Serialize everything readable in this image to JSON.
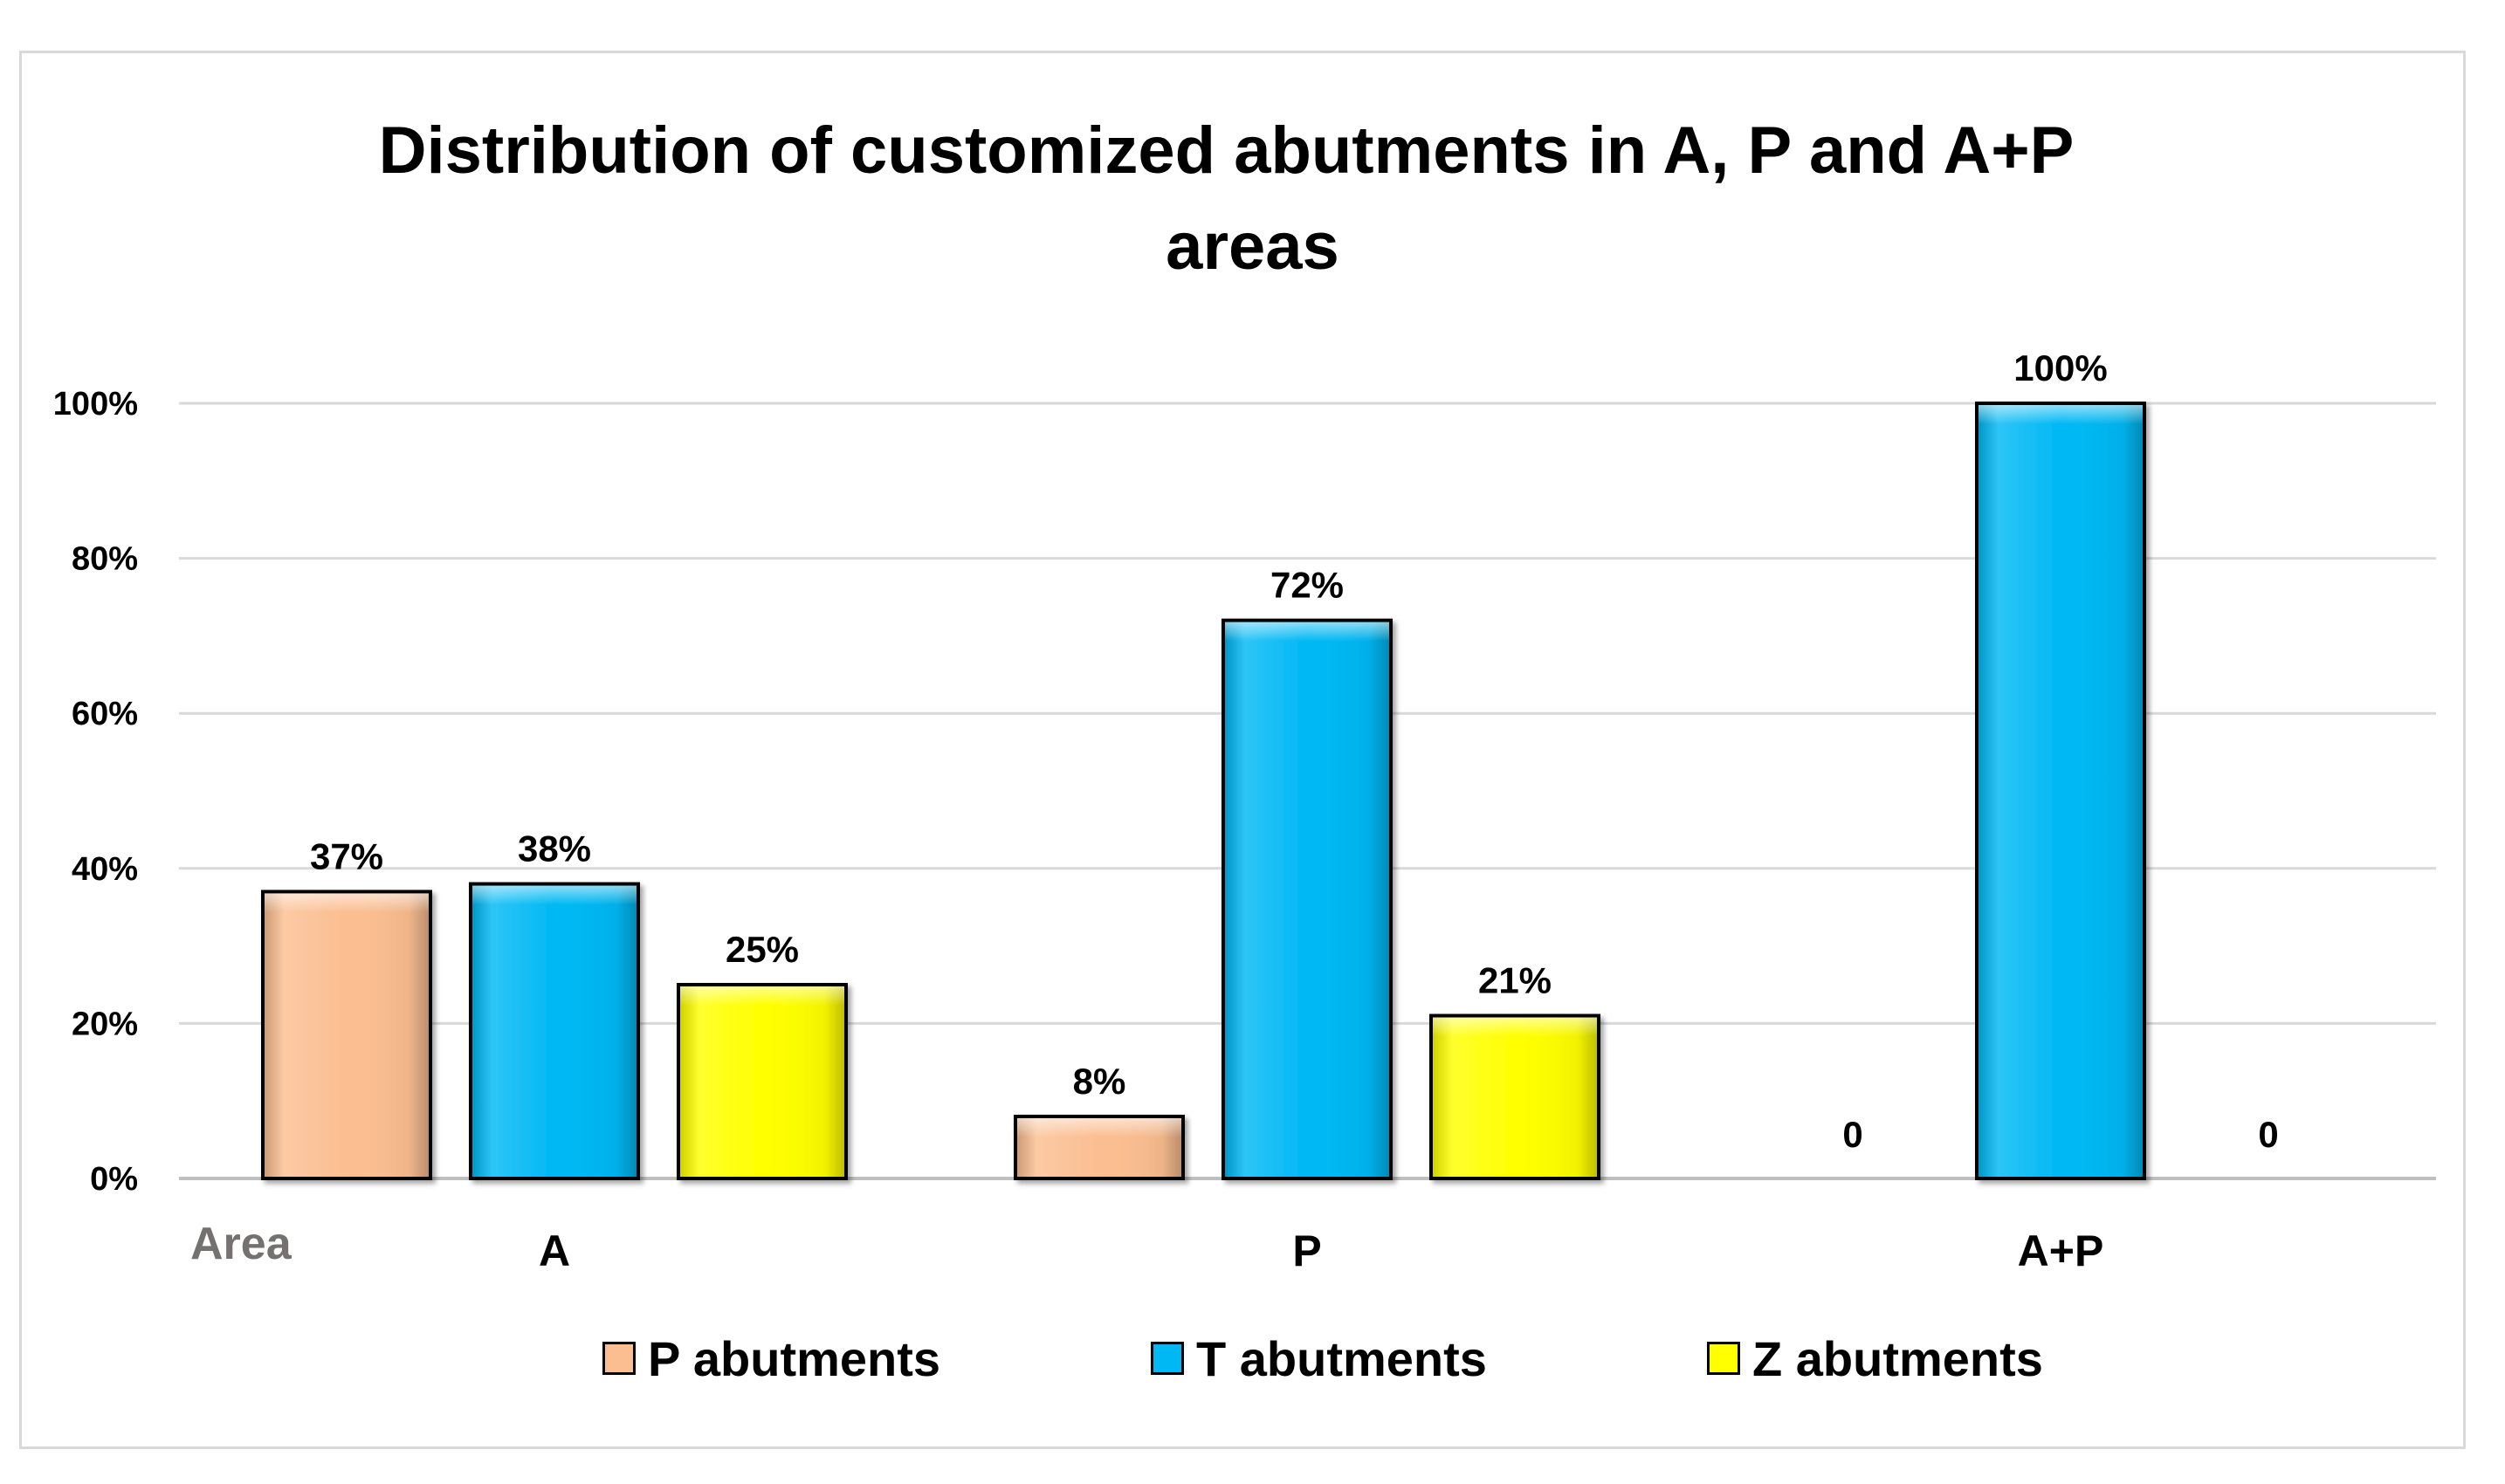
{
  "chart_data": {
    "type": "bar",
    "title": "Distribution of customized abutments in A, P and A+P areas",
    "title_lines": [
      "Distribution of customized abutments in A, P and A+P",
      "areas"
    ],
    "xlabel": "Area",
    "ylabel": "",
    "categories": [
      "A",
      "P",
      "A+P"
    ],
    "ylim": [
      0,
      100
    ],
    "yticks": [
      0,
      20,
      40,
      60,
      80,
      100
    ],
    "ytick_labels": [
      "0%",
      "20%",
      "40%",
      "60%",
      "80%",
      "100%"
    ],
    "grid": true,
    "legend_position": "bottom",
    "series": [
      {
        "name": "P abutments",
        "color": "#fbbe90",
        "values": [
          37,
          8,
          0
        ],
        "labels": [
          "37%",
          "8%",
          "0"
        ]
      },
      {
        "name": "T abutments",
        "color": "#00b8f4",
        "values": [
          38,
          72,
          100
        ],
        "labels": [
          "38%",
          "72%",
          "100%"
        ]
      },
      {
        "name": "Z abutments",
        "color": "#ffff00",
        "values": [
          25,
          21,
          0
        ],
        "labels": [
          "25%",
          "21%",
          "0"
        ]
      }
    ]
  }
}
